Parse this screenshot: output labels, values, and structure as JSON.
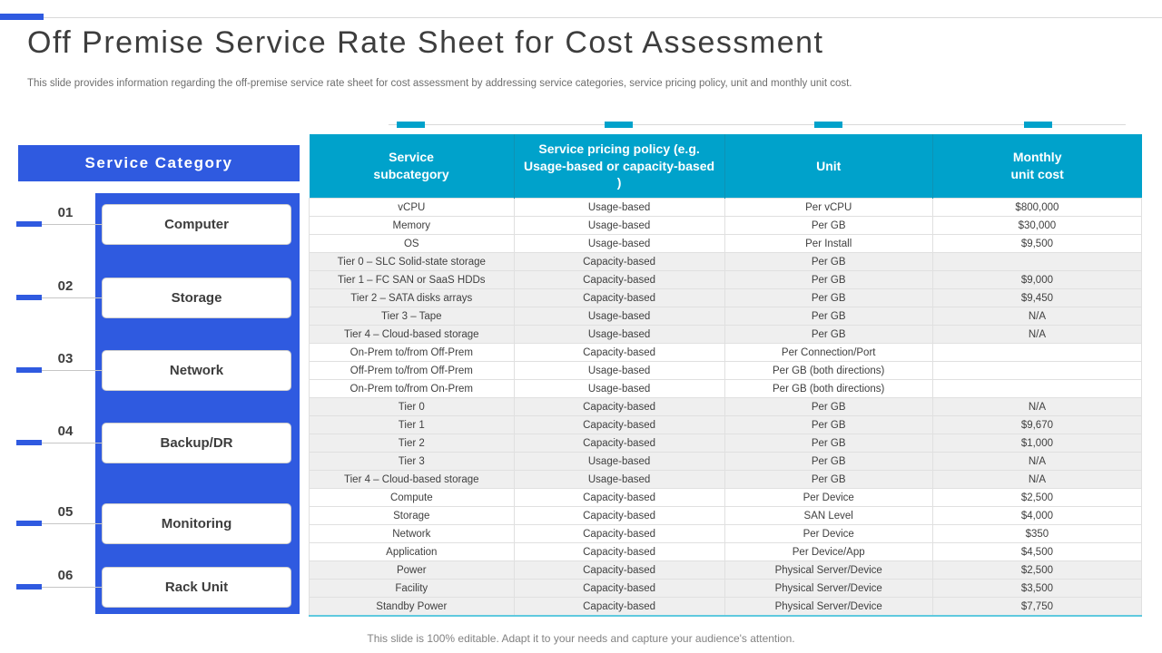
{
  "header": {
    "title": "Off Premise Service Rate Sheet for Cost Assessment",
    "subtitle": "This slide provides information regarding the off-premise service rate sheet for cost assessment by addressing service categories, service pricing policy, unit and monthly unit cost."
  },
  "sidebar": {
    "title": "Service Category",
    "items": [
      {
        "number": "01",
        "label": "Computer"
      },
      {
        "number": "02",
        "label": "Storage"
      },
      {
        "number": "03",
        "label": "Network"
      },
      {
        "number": "04",
        "label": "Backup/DR"
      },
      {
        "number": "05",
        "label": "Monitoring"
      },
      {
        "number": "06",
        "label": "Rack Unit"
      }
    ]
  },
  "table": {
    "columns": [
      "Service\nsubcategory",
      "Service pricing policy (e.g. Usage-based or capacity-based )",
      "Unit",
      "Monthly\nunit cost"
    ],
    "groups": [
      {
        "category": "Computer",
        "rows": [
          [
            "vCPU",
            "Usage-based",
            "Per vCPU",
            "$800,000"
          ],
          [
            "Memory",
            "Usage-based",
            "Per GB",
            "$30,000"
          ],
          [
            "OS",
            "Usage-based",
            "Per Install",
            "$9,500"
          ]
        ]
      },
      {
        "category": "Storage",
        "rows": [
          [
            "Tier 0 – SLC Solid-state storage",
            "Capacity-based",
            "Per GB",
            ""
          ],
          [
            "Tier 1 – FC SAN or SaaS HDDs",
            "Capacity-based",
            "Per GB",
            "$9,000"
          ],
          [
            "Tier 2 – SATA disks arrays",
            "Capacity-based",
            "Per GB",
            "$9,450"
          ],
          [
            "Tier 3 – Tape",
            "Usage-based",
            "Per GB",
            "N/A"
          ],
          [
            "Tier 4 – Cloud-based storage",
            "Usage-based",
            "Per GB",
            "N/A"
          ]
        ]
      },
      {
        "category": "Network",
        "rows": [
          [
            "On-Prem to/from Off-Prem",
            "Capacity-based",
            "Per Connection/Port",
            ""
          ],
          [
            "Off-Prem to/from Off-Prem",
            "Usage-based",
            "Per GB (both directions)",
            ""
          ],
          [
            "On-Prem to/from On-Prem",
            "Usage-based",
            "Per GB (both directions)",
            ""
          ]
        ]
      },
      {
        "category": "Backup/DR",
        "rows": [
          [
            "Tier 0",
            "Capacity-based",
            "Per GB",
            "N/A"
          ],
          [
            "Tier 1",
            "Capacity-based",
            "Per GB",
            "$9,670"
          ],
          [
            "Tier 2",
            "Capacity-based",
            "Per GB",
            "$1,000"
          ],
          [
            "Tier 3",
            "Usage-based",
            "Per GB",
            "N/A"
          ],
          [
            "Tier 4 – Cloud-based storage",
            "Usage-based",
            "Per GB",
            "N/A"
          ]
        ]
      },
      {
        "category": "Monitoring",
        "rows": [
          [
            "Compute",
            "Capacity-based",
            "Per Device",
            "$2,500"
          ],
          [
            "Storage",
            "Capacity-based",
            "SAN Level",
            "$4,000"
          ],
          [
            "Network",
            "Capacity-based",
            "Per Device",
            "$350"
          ],
          [
            "Application",
            "Capacity-based",
            "Per Device/App",
            "$4,500"
          ]
        ]
      },
      {
        "category": "Rack Unit",
        "rows": [
          [
            "Power",
            "Capacity-based",
            "Physical Server/Device",
            "$2,500"
          ],
          [
            "Facility",
            "Capacity-based",
            "Physical Server/Device",
            "$3,500"
          ],
          [
            "Standby Power",
            "Capacity-based",
            "Physical Server/Device",
            "$7,750"
          ]
        ]
      }
    ]
  },
  "footer": {
    "note": "This slide is 100% editable. Adapt it to your needs and capture your audience's attention."
  },
  "colors": {
    "accent_blue": "#2f5ae0",
    "accent_teal": "#00a2cb",
    "band_gray": "#efefef",
    "table_bottom_border": "#5fc9de"
  }
}
